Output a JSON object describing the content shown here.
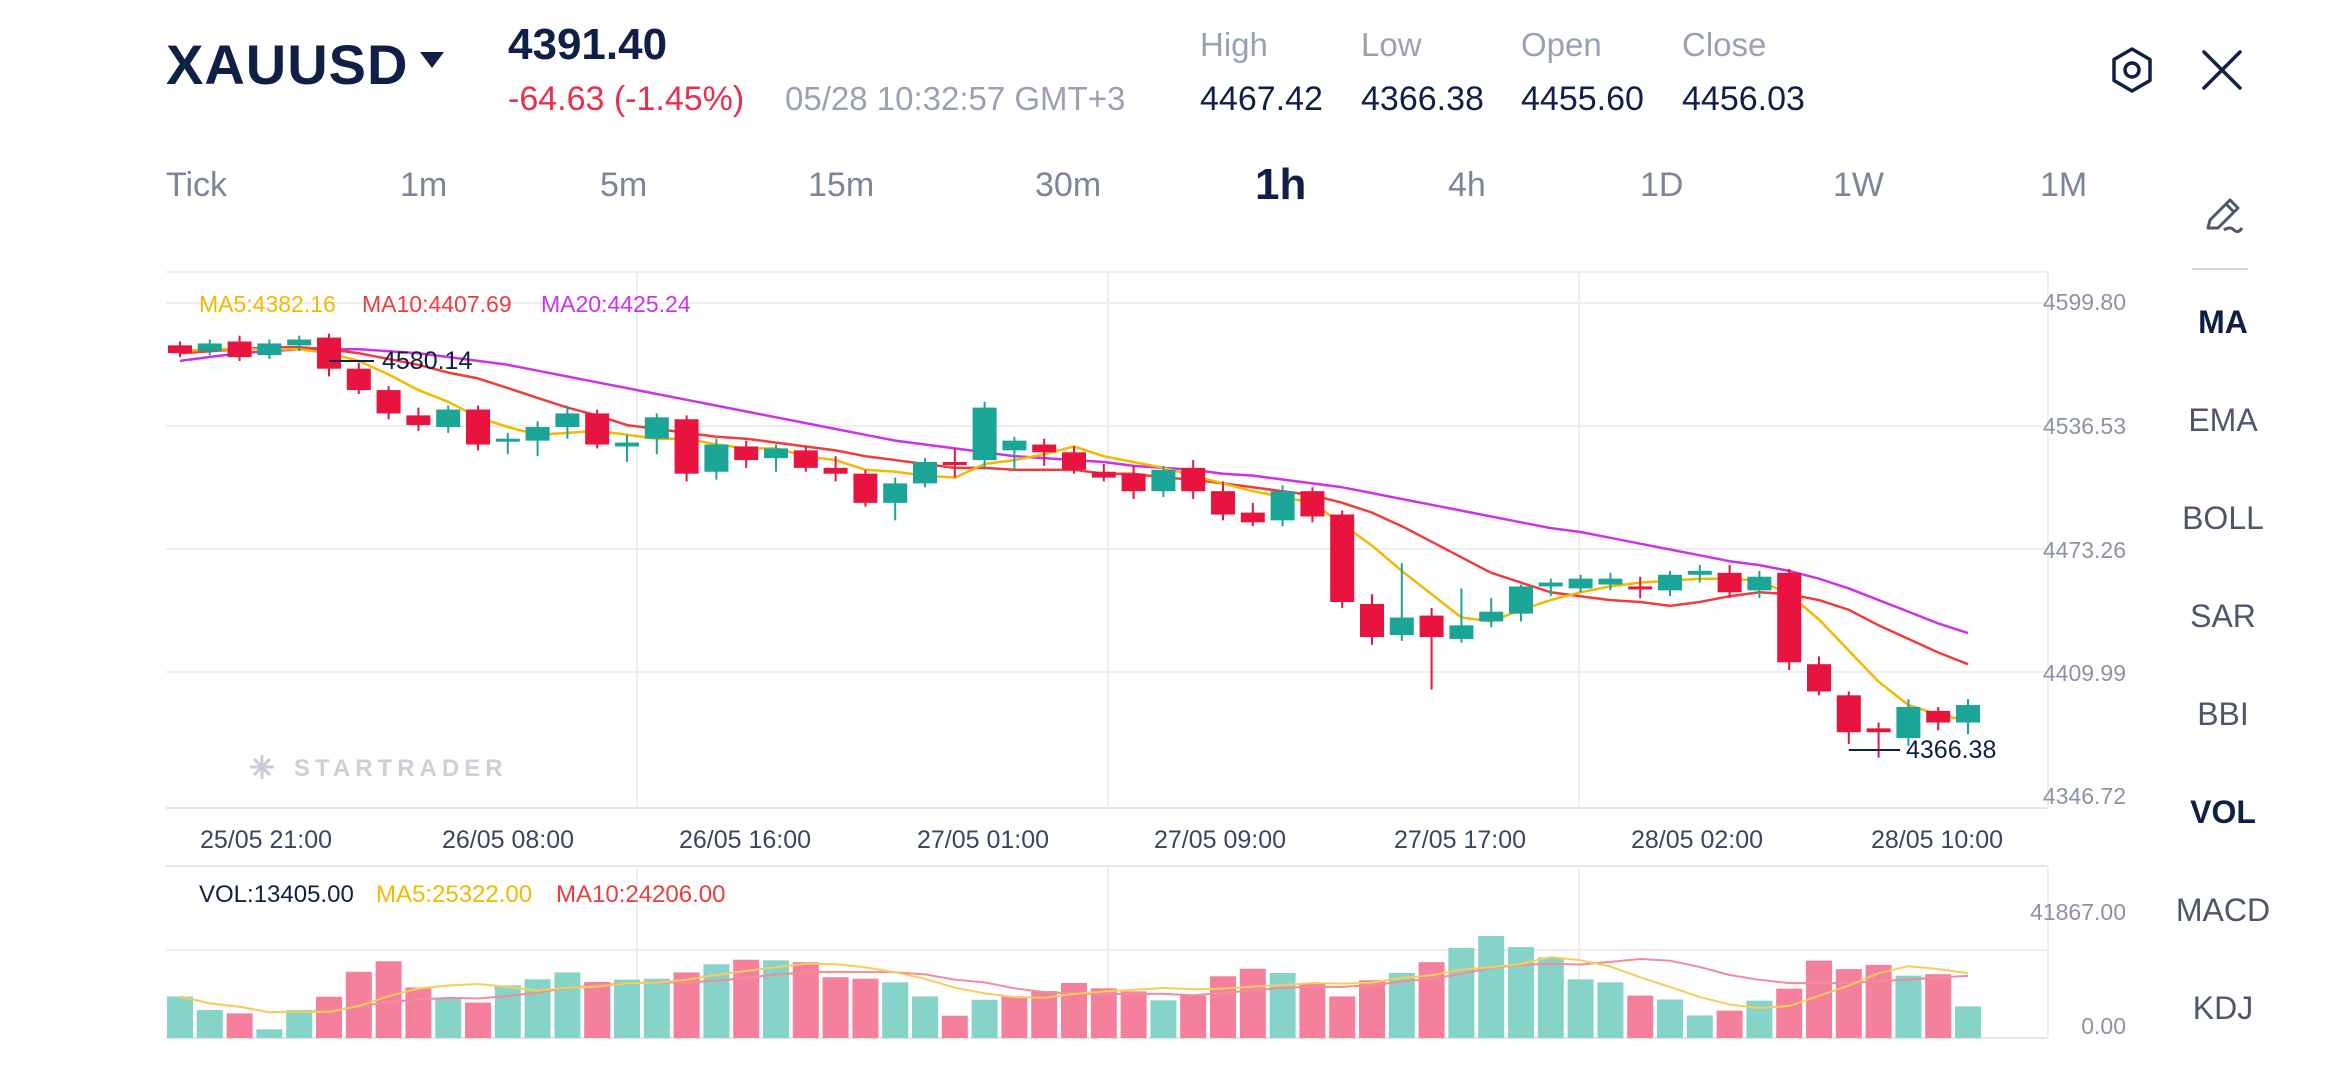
{
  "header": {
    "symbol": "XAUUSD",
    "price": "4391.40",
    "change": "-64.63 (-1.45%)",
    "datetime": "05/28 10:32:57 GMT+3",
    "stats": [
      {
        "label": "High",
        "value": "4467.42"
      },
      {
        "label": "Low",
        "value": "4366.38"
      },
      {
        "label": "Open",
        "value": "4455.60"
      },
      {
        "label": "Close",
        "value": "4456.03"
      }
    ]
  },
  "timeframes": [
    "Tick",
    "1m",
    "5m",
    "15m",
    "30m",
    "1h",
    "4h",
    "1D",
    "1W",
    "1M"
  ],
  "active_timeframe": "1h",
  "indicators": [
    "MA",
    "EMA",
    "BOLL",
    "SAR",
    "BBI",
    "VOL",
    "MACD",
    "KDJ"
  ],
  "active_indicators": [
    "MA",
    "VOL"
  ],
  "icons": {
    "settings": "settings-hexagon-icon",
    "close": "close-icon",
    "draw": "pencil-draw-icon"
  },
  "watermark": "STARTRADER",
  "colors": {
    "up": "#1aa596",
    "down": "#e8143f",
    "ma5": "#f5b800",
    "ma10": "#ef3c3c",
    "ma20": "#cc33e6",
    "vol_up": "#86d3c9",
    "vol_down": "#f4809b"
  },
  "price_panel": {
    "legend": {
      "ma5": "MA5:4382.16",
      "ma10": "MA10:4407.69",
      "ma20": "MA20:4425.24"
    },
    "y_ticks": [
      "4599.80",
      "4536.53",
      "4473.26",
      "4409.99",
      "4346.72"
    ],
    "high_marker": "4580.14",
    "low_marker": "4366.38"
  },
  "x_labels": [
    "25/05 21:00",
    "26/05 08:00",
    "26/05 16:00",
    "27/05 01:00",
    "27/05 09:00",
    "27/05 17:00",
    "28/05 02:00",
    "28/05 10:00"
  ],
  "volume_panel": {
    "legend": {
      "vol": "VOL:13405.00",
      "ma5": "MA5:25322.00",
      "ma10": "MA10:24206.00"
    },
    "y_ticks": [
      "41867.00",
      "0.00"
    ]
  },
  "chart_data": {
    "type": "candlestick",
    "ylim": [
      4346.72,
      4599.8
    ],
    "candles": [
      [
        4578,
        4580,
        4572,
        4574
      ],
      [
        4575,
        4581,
        4573,
        4579
      ],
      [
        4580,
        4583,
        4570,
        4572
      ],
      [
        4573,
        4581,
        4571,
        4579
      ],
      [
        4578,
        4583,
        4575,
        4581
      ],
      [
        4582,
        4584,
        4562,
        4566
      ],
      [
        4566,
        4569,
        4553,
        4555
      ],
      [
        4555,
        4557,
        4540,
        4543
      ],
      [
        4542,
        4546,
        4534,
        4537
      ],
      [
        4536,
        4547,
        4533,
        4545
      ],
      [
        4545,
        4547,
        4524,
        4527
      ],
      [
        4529,
        4533,
        4522,
        4530
      ],
      [
        4529,
        4539,
        4521,
        4536
      ],
      [
        4536,
        4547,
        4530,
        4543
      ],
      [
        4543,
        4545,
        4525,
        4527
      ],
      [
        4526,
        4532,
        4518,
        4528
      ],
      [
        4530,
        4543,
        4522,
        4541
      ],
      [
        4540,
        4542,
        4508,
        4512
      ],
      [
        4513,
        4530,
        4509,
        4527
      ],
      [
        4526,
        4529,
        4515,
        4519
      ],
      [
        4520,
        4527,
        4513,
        4525
      ],
      [
        4524,
        4526,
        4513,
        4515
      ],
      [
        4515,
        4521,
        4508,
        4512
      ],
      [
        4512,
        4514,
        4495,
        4497
      ],
      [
        4497,
        4510,
        4488,
        4507
      ],
      [
        4507,
        4520,
        4505,
        4518
      ],
      [
        4518,
        4525,
        4510,
        4517
      ],
      [
        4519,
        4549,
        4514,
        4546
      ],
      [
        4524,
        4531,
        4514,
        4529
      ],
      [
        4527,
        4530,
        4516,
        4523
      ],
      [
        4523,
        4526,
        4512,
        4514
      ],
      [
        4513,
        4517,
        4508,
        4510
      ],
      [
        4512,
        4516,
        4499,
        4503
      ],
      [
        4503,
        4516,
        4500,
        4514
      ],
      [
        4515,
        4519,
        4499,
        4503
      ],
      [
        4503,
        4508,
        4488,
        4491
      ],
      [
        4492,
        4497,
        4485,
        4487
      ],
      [
        4488,
        4506,
        4485,
        4503
      ],
      [
        4503,
        4505,
        4487,
        4490
      ],
      [
        4491,
        4493,
        4443,
        4446
      ],
      [
        4445,
        4450,
        4424,
        4428
      ],
      [
        4429,
        4466,
        4426,
        4438
      ],
      [
        4439,
        4443,
        4401,
        4428
      ],
      [
        4427,
        4453,
        4425,
        4434
      ],
      [
        4436,
        4448,
        4433,
        4441
      ],
      [
        4440,
        4455,
        4436,
        4454
      ],
      [
        4454,
        4458,
        4449,
        4456
      ],
      [
        4453,
        4460,
        4451,
        4458
      ],
      [
        4455,
        4461,
        4452,
        4458
      ],
      [
        4454,
        4459,
        4448,
        4453
      ],
      [
        4452,
        4462,
        4449,
        4460
      ],
      [
        4460,
        4465,
        4456,
        4462
      ],
      [
        4461,
        4465,
        4448,
        4451
      ],
      [
        4452,
        4462,
        4448,
        4459
      ],
      [
        4461,
        4463,
        4411,
        4415
      ],
      [
        4414,
        4418,
        4398,
        4400
      ],
      [
        4398,
        4400,
        4373,
        4379
      ],
      [
        4381,
        4384,
        4366,
        4379
      ],
      [
        4376,
        4396,
        4372,
        4392
      ],
      [
        4390,
        4392,
        4380,
        4384
      ],
      [
        4384,
        4396,
        4378,
        4393
      ]
    ],
    "ma5": [
      4575,
      4576,
      4576,
      4576,
      4576,
      4574,
      4570,
      4563,
      4555,
      4549,
      4541,
      4536,
      4532,
      4533,
      4534,
      4532,
      4530,
      4530,
      4527,
      4525,
      4525,
      4521,
      4519,
      4514,
      4513,
      4511,
      4510,
      4517,
      4519,
      4522,
      4526,
      4521,
      4518,
      4515,
      4511,
      4507,
      4503,
      4500,
      4497,
      4486,
      4475,
      4462,
      4450,
      4438,
      4436,
      4442,
      4447,
      4451,
      4454,
      4456,
      4457,
      4458,
      4458,
      4457,
      4450,
      4437,
      4421,
      4405,
      4393,
      4388,
      4385
    ],
    "ma10": [
      4574,
      4575,
      4576,
      4577,
      4577,
      4576,
      4574,
      4571,
      4568,
      4564,
      4561,
      4556,
      4551,
      4546,
      4542,
      4537,
      4535,
      4533,
      4531,
      4530,
      4528,
      4526,
      4524,
      4521,
      4519,
      4517,
      4515,
      4515,
      4514,
      4514,
      4514,
      4512,
      4512,
      4510,
      4509,
      4507,
      4505,
      4503,
      4501,
      4497,
      4492,
      4485,
      4477,
      4469,
      4461,
      4456,
      4451,
      4449,
      4447,
      4446,
      4444,
      4446,
      4449,
      4451,
      4450,
      4447,
      4442,
      4434,
      4427,
      4420,
      4414
    ],
    "ma20": [
      4570,
      4572,
      4574,
      4575,
      4576,
      4576,
      4576,
      4575,
      4574,
      4572,
      4570,
      4568,
      4565,
      4562,
      4559,
      4556,
      4553,
      4550,
      4547,
      4544,
      4541,
      4538,
      4535,
      4532,
      4529,
      4527,
      4525,
      4523,
      4521,
      4520,
      4519,
      4518,
      4516,
      4515,
      4514,
      4512,
      4511,
      4509,
      4507,
      4505,
      4502,
      4499,
      4496,
      4493,
      4490,
      4487,
      4484,
      4482,
      4479,
      4476,
      4473,
      4470,
      4467,
      4465,
      4462,
      4458,
      4453,
      4447,
      4441,
      4435,
      4430
    ],
    "volume": {
      "ylim": [
        0,
        41867
      ],
      "values": [
        13800,
        9300,
        8200,
        2900,
        9300,
        13700,
        22000,
        25500,
        16800,
        13200,
        11800,
        17500,
        19500,
        21800,
        18600,
        19400,
        19700,
        21800,
        24500,
        26000,
        25800,
        25200,
        20200,
        19700,
        18500,
        13800,
        7400,
        12700,
        13700,
        15600,
        18300,
        16500,
        15500,
        12500,
        14100,
        20500,
        23000,
        21600,
        18100,
        13800,
        19200,
        21600,
        25200,
        29900,
        33900,
        30200,
        26800,
        19500,
        18500,
        14100,
        12800,
        7500,
        9100,
        12400,
        16400,
        25700,
        22900,
        24300,
        20700,
        21200,
        10500
      ],
      "up": [
        true,
        true,
        false,
        true,
        true,
        false,
        false,
        false,
        false,
        true,
        false,
        true,
        true,
        true,
        false,
        true,
        true,
        false,
        true,
        false,
        true,
        false,
        false,
        false,
        true,
        true,
        false,
        true,
        false,
        false,
        false,
        false,
        false,
        true,
        false,
        false,
        false,
        true,
        false,
        false,
        false,
        true,
        false,
        true,
        true,
        true,
        true,
        true,
        true,
        false,
        true,
        true,
        false,
        true,
        false,
        false,
        false,
        false,
        true,
        false,
        true
      ],
      "ma5": [
        13800,
        11500,
        10400,
        8550,
        8700,
        8680,
        10620,
        13880,
        16460,
        17460,
        17940,
        16960,
        15760,
        16760,
        17080,
        18220,
        18400,
        19340,
        20980,
        22280,
        23560,
        24660,
        24500,
        23480,
        21840,
        19680,
        16720,
        14820,
        13620,
        13360,
        14640,
        15440,
        16000,
        16620,
        16200,
        16420,
        17080,
        17580,
        18260,
        18060,
        18420,
        19960,
        20800,
        22720,
        23540,
        24600,
        26900,
        25800,
        23760,
        20160,
        16980,
        13640,
        11120,
        9940,
        10660,
        14030,
        17460,
        21540,
        23860,
        22930,
        21580
      ],
      "ma10": [
        13800,
        11500,
        10400,
        8550,
        8700,
        9070,
        10430,
        11960,
        12750,
        13320,
        13120,
        13940,
        15070,
        16640,
        17570,
        18140,
        18490,
        18460,
        19020,
        20000,
        21110,
        21830,
        21950,
        21900,
        21860,
        21130,
        19390,
        18480,
        16510,
        15260,
        14780,
        14590,
        14720,
        14660,
        14200,
        14920,
        15850,
        16640,
        17030,
        16990,
        17570,
        18780,
        19660,
        21320,
        23300,
        24300,
        24610,
        24420,
        25300,
        26250,
        25690,
        23600,
        20940,
        19350,
        18240,
        18240,
        18240,
        18890,
        19400,
        20090,
        20640
      ]
    },
    "x_categories": [
      "25/05 21:00",
      "26/05 08:00",
      "26/05 16:00",
      "27/05 01:00",
      "27/05 09:00",
      "27/05 17:00",
      "28/05 02:00",
      "28/05 10:00"
    ]
  }
}
